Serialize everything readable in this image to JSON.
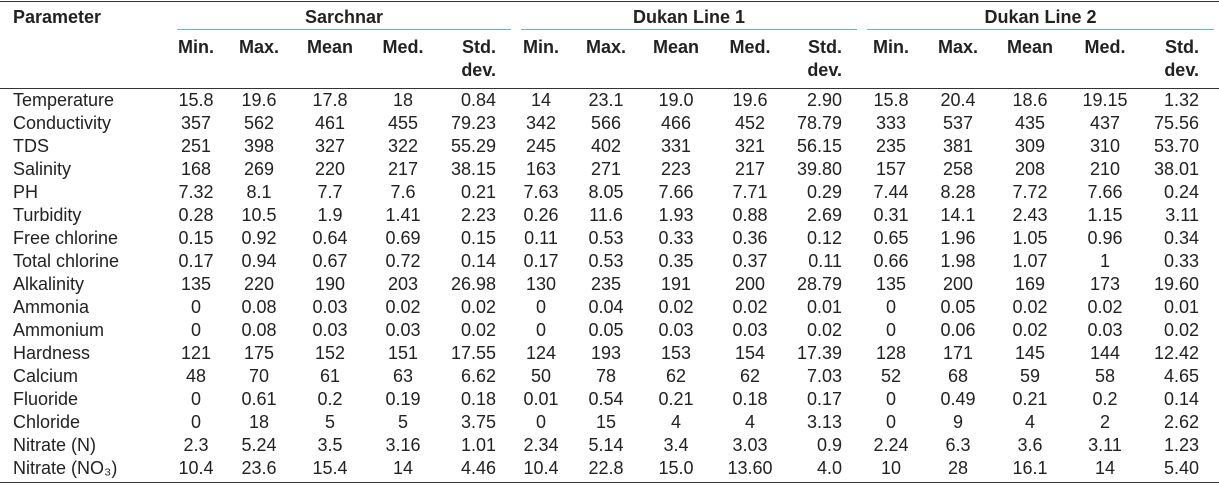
{
  "colors": {
    "text": "#222222",
    "rule": "#333333",
    "group_rule": "#6db3c5",
    "background": "#ffffff"
  },
  "table": {
    "parameter_header": "Parameter",
    "groups": [
      {
        "name": "Sarchnar",
        "columns": [
          "Min.",
          "Max.",
          "Mean",
          "Med.",
          "Std. dev."
        ]
      },
      {
        "name": "Dukan Line 1",
        "columns": [
          "Min.",
          "Max.",
          "Mean",
          "Med.",
          "Std. dev."
        ]
      },
      {
        "name": "Dukan Line 2",
        "columns": [
          "Min.",
          "Max.",
          "Mean",
          "Med.",
          "Std. dev."
        ]
      }
    ],
    "rows": [
      {
        "parameter": "Temperature",
        "values": [
          [
            "15.8",
            "19.6",
            "17.8",
            "18",
            "0.84"
          ],
          [
            "14",
            "23.1",
            "19.0",
            "19.6",
            "2.90"
          ],
          [
            "15.8",
            "20.4",
            "18.6",
            "19.15",
            "1.32"
          ]
        ]
      },
      {
        "parameter": "Conductivity",
        "values": [
          [
            "357",
            "562",
            "461",
            "455",
            "79.23"
          ],
          [
            "342",
            "566",
            "466",
            "452",
            "78.79"
          ],
          [
            "333",
            "537",
            "435",
            "437",
            "75.56"
          ]
        ]
      },
      {
        "parameter": "TDS",
        "values": [
          [
            "251",
            "398",
            "327",
            "322",
            "55.29"
          ],
          [
            "245",
            "402",
            "331",
            "321",
            "56.15"
          ],
          [
            "235",
            "381",
            "309",
            "310",
            "53.70"
          ]
        ]
      },
      {
        "parameter": "Salinity",
        "values": [
          [
            "168",
            "269",
            "220",
            "217",
            "38.15"
          ],
          [
            "163",
            "271",
            "223",
            "217",
            "39.80"
          ],
          [
            "157",
            "258",
            "208",
            "210",
            "38.01"
          ]
        ]
      },
      {
        "parameter": "PH",
        "values": [
          [
            "7.32",
            "8.1",
            "7.7",
            "7.6",
            "0.21"
          ],
          [
            "7.63",
            "8.05",
            "7.66",
            "7.71",
            "0.29"
          ],
          [
            "7.44",
            "8.28",
            "7.72",
            "7.66",
            "0.24"
          ]
        ]
      },
      {
        "parameter": "Turbidity",
        "values": [
          [
            "0.28",
            "10.5",
            "1.9",
            "1.41",
            "2.23"
          ],
          [
            "0.26",
            "11.6",
            "1.93",
            "0.88",
            "2.69"
          ],
          [
            "0.31",
            "14.1",
            "2.43",
            "1.15",
            "3.11"
          ]
        ]
      },
      {
        "parameter": "Free chlorine",
        "values": [
          [
            "0.15",
            "0.92",
            "0.64",
            "0.69",
            "0.15"
          ],
          [
            "0.11",
            "0.53",
            "0.33",
            "0.36",
            "0.12"
          ],
          [
            "0.65",
            "1.96",
            "1.05",
            "0.96",
            "0.34"
          ]
        ]
      },
      {
        "parameter": "Total chlorine",
        "values": [
          [
            "0.17",
            "0.94",
            "0.67",
            "0.72",
            "0.14"
          ],
          [
            "0.17",
            "0.53",
            "0.35",
            "0.37",
            "0.11"
          ],
          [
            "0.66",
            "1.98",
            "1.07",
            "1",
            "0.33"
          ]
        ]
      },
      {
        "parameter": "Alkalinity",
        "values": [
          [
            "135",
            "220",
            "190",
            "203",
            "26.98"
          ],
          [
            "130",
            "235",
            "191",
            "200",
            "28.79"
          ],
          [
            "135",
            "200",
            "169",
            "173",
            "19.60"
          ]
        ]
      },
      {
        "parameter": "Ammonia",
        "values": [
          [
            "0",
            "0.08",
            "0.03",
            "0.02",
            "0.02"
          ],
          [
            "0",
            "0.04",
            "0.02",
            "0.02",
            "0.01"
          ],
          [
            "0",
            "0.05",
            "0.02",
            "0.02",
            "0.01"
          ]
        ]
      },
      {
        "parameter": "Ammonium",
        "values": [
          [
            "0",
            "0.08",
            "0.03",
            "0.03",
            "0.02"
          ],
          [
            "0",
            "0.05",
            "0.03",
            "0.03",
            "0.02"
          ],
          [
            "0",
            "0.06",
            "0.02",
            "0.03",
            "0.02"
          ]
        ]
      },
      {
        "parameter": "Hardness",
        "values": [
          [
            "121",
            "175",
            "152",
            "151",
            "17.55"
          ],
          [
            "124",
            "193",
            "153",
            "154",
            "17.39"
          ],
          [
            "128",
            "171",
            "145",
            "144",
            "12.42"
          ]
        ]
      },
      {
        "parameter": "Calcium",
        "values": [
          [
            "48",
            "70",
            "61",
            "63",
            "6.62"
          ],
          [
            "50",
            "78",
            "62",
            "62",
            "7.03"
          ],
          [
            "52",
            "68",
            "59",
            "58",
            "4.65"
          ]
        ]
      },
      {
        "parameter": "Fluoride",
        "values": [
          [
            "0",
            "0.61",
            "0.2",
            "0.19",
            "0.18"
          ],
          [
            "0.01",
            "0.54",
            "0.21",
            "0.18",
            "0.17"
          ],
          [
            "0",
            "0.49",
            "0.21",
            "0.2",
            "0.14"
          ]
        ]
      },
      {
        "parameter": "Chloride",
        "values": [
          [
            "0",
            "18",
            "5",
            "5",
            "3.75"
          ],
          [
            "0",
            "15",
            "4",
            "4",
            "3.13"
          ],
          [
            "0",
            "9",
            "4",
            "2",
            "2.62"
          ]
        ]
      },
      {
        "parameter": "Nitrate (N)",
        "values": [
          [
            "2.3",
            "5.24",
            "3.5",
            "3.16",
            "1.01"
          ],
          [
            "2.34",
            "5.14",
            "3.4",
            "3.03",
            "0.9"
          ],
          [
            "2.24",
            "6.3",
            "3.6",
            "3.11",
            "1.23"
          ]
        ]
      },
      {
        "parameter": "Nitrate (NO₃)",
        "values": [
          [
            "10.4",
            "23.6",
            "15.4",
            "14",
            "4.46"
          ],
          [
            "10.4",
            "22.8",
            "15.0",
            "13.60",
            "4.0"
          ],
          [
            "10",
            "28",
            "16.1",
            "14",
            "5.40"
          ]
        ]
      }
    ]
  }
}
